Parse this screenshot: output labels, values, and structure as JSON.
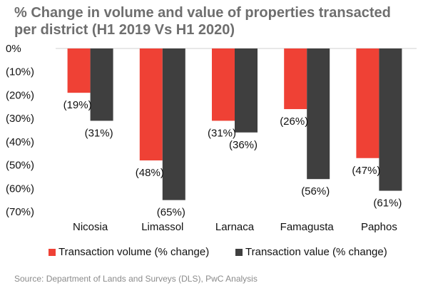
{
  "title": "% Change in volume and value of properties transacted per district (H1 2019 Vs H1 2020)",
  "source": "Source: Department of Lands and Surveys (DLS), PwC Analysis",
  "colors": {
    "volume": "#ef4135",
    "value": "#3f3f3f",
    "grid": "#d0d0d0"
  },
  "chart_data": {
    "type": "bar",
    "categories": [
      "Nicosia",
      "Limassol",
      "Larnaca",
      "Famagusta",
      "Paphos"
    ],
    "series": [
      {
        "name": "Transaction volume (% change)",
        "values": [
          -19,
          -48,
          -31,
          -26,
          -47
        ],
        "labels": [
          "(19%)",
          "(48%)",
          "(31%)",
          "(26%)",
          "(47%)"
        ]
      },
      {
        "name": "Transaction value (% change)",
        "values": [
          -31,
          -65,
          -36,
          -56,
          -61
        ],
        "labels": [
          "(31%)",
          "(65%)",
          "(36%)",
          "(56%)",
          "(61%)"
        ]
      }
    ],
    "yticks": [
      0,
      -10,
      -20,
      -30,
      -40,
      -50,
      -60,
      -70
    ],
    "ytick_labels": [
      "0%",
      "(10%)",
      "(20%)",
      "(30%)",
      "(40%)",
      "(50%)",
      "(60%)",
      "(70%)"
    ],
    "ylim": [
      -70,
      0
    ],
    "legend_position": "bottom",
    "grid": false
  }
}
